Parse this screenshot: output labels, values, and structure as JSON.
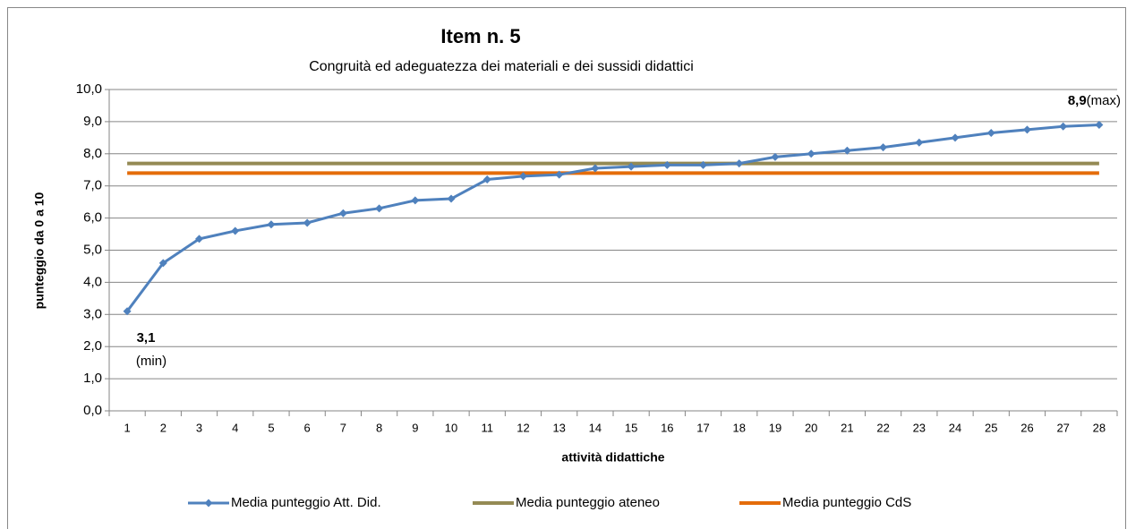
{
  "chart_data": {
    "type": "line",
    "title": "Item n. 5",
    "subtitle": "Congruità ed adeguatezza dei materiali e dei sussidi didattici",
    "x_label": "attività didattiche",
    "y_label": "punteggio da 0 a 10",
    "categories": [
      "1",
      "2",
      "3",
      "4",
      "5",
      "6",
      "7",
      "8",
      "9",
      "10",
      "11",
      "12",
      "13",
      "14",
      "15",
      "16",
      "17",
      "18",
      "19",
      "20",
      "21",
      "22",
      "23",
      "24",
      "25",
      "26",
      "27",
      "28"
    ],
    "series": [
      {
        "name": "Media punteggio Att. Did.",
        "color": "#4f81bd",
        "marker": "diamond",
        "values": [
          3.1,
          4.6,
          5.35,
          5.6,
          5.8,
          5.85,
          6.15,
          6.3,
          6.55,
          6.6,
          7.2,
          7.3,
          7.35,
          7.55,
          7.6,
          7.65,
          7.65,
          7.7,
          7.9,
          8.0,
          8.1,
          8.2,
          8.35,
          8.5,
          8.65,
          8.75,
          8.85,
          8.9
        ]
      },
      {
        "name": "Media punteggio ateneo",
        "color": "#948a54",
        "values": [
          7.7,
          7.7,
          7.7,
          7.7,
          7.7,
          7.7,
          7.7,
          7.7,
          7.7,
          7.7,
          7.7,
          7.7,
          7.7,
          7.7,
          7.7,
          7.7,
          7.7,
          7.7,
          7.7,
          7.7,
          7.7,
          7.7,
          7.7,
          7.7,
          7.7,
          7.7,
          7.7,
          7.7
        ]
      },
      {
        "name": "Media punteggio CdS",
        "color": "#e46c0a",
        "values": [
          7.4,
          7.4,
          7.4,
          7.4,
          7.4,
          7.4,
          7.4,
          7.4,
          7.4,
          7.4,
          7.4,
          7.4,
          7.4,
          7.4,
          7.4,
          7.4,
          7.4,
          7.4,
          7.4,
          7.4,
          7.4,
          7.4,
          7.4,
          7.4,
          7.4,
          7.4,
          7.4,
          7.4
        ]
      }
    ],
    "annotations": [
      {
        "label": "3,1",
        "note": "(min)"
      },
      {
        "label": "8,9",
        "note": "(max)"
      }
    ],
    "ylim": [
      0,
      10
    ],
    "yticks": [
      {
        "value": 0,
        "label": "0,0"
      },
      {
        "value": 1,
        "label": "1,0"
      },
      {
        "value": 2,
        "label": "2,0"
      },
      {
        "value": 3,
        "label": "3,0"
      },
      {
        "value": 4,
        "label": "4,0"
      },
      {
        "value": 5,
        "label": "5,0"
      },
      {
        "value": 6,
        "label": "6,0"
      },
      {
        "value": 7,
        "label": "7,0"
      },
      {
        "value": 8,
        "label": "8,0"
      },
      {
        "value": 9,
        "label": "9,0"
      },
      {
        "value": 10,
        "label": "10,0"
      }
    ],
    "grid": true,
    "legend": "bottom"
  }
}
